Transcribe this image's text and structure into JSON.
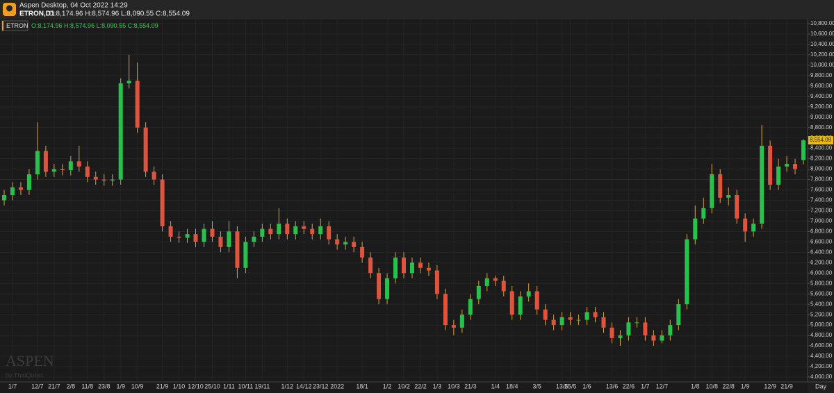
{
  "chart_data": {
    "type": "candlestick",
    "header": {
      "app": "Aspen Desktop, 04 Oct 2022 14:29",
      "symbol": "ETRON,D1",
      "ohlc": "O:8,174.96 H:8,574.96 L:8,090.55 C:8,554.09"
    },
    "legend_ohlc": "O:8,174.96 H:8,574.96 L:8,090.55 C:8,554.09",
    "last_price_label": "8,554.09",
    "x_axis_label": "Day",
    "watermark": {
      "title": "ASPEN",
      "subtitle": "by ThaiQuest"
    },
    "up_color": "#26c24b",
    "down_color": "#e0533d",
    "wick_color": "#d9a441",
    "grid": true,
    "categories": [
      null,
      "1/7",
      null,
      null,
      "12/7",
      null,
      "21/7",
      null,
      "2/8",
      null,
      "11/8",
      null,
      "23/8",
      null,
      "1/9",
      null,
      "10/9",
      null,
      null,
      "21/9",
      null,
      "1/10",
      null,
      "12/10",
      null,
      "25/10",
      null,
      "1/11",
      null,
      "10/11",
      null,
      "19/11",
      null,
      null,
      "1/12",
      null,
      "14/12",
      null,
      "23/12",
      null,
      "2022",
      null,
      null,
      "18/1",
      null,
      null,
      "1/2",
      null,
      "10/2",
      null,
      "22/2",
      null,
      "1/3",
      null,
      "10/3",
      null,
      "21/3",
      null,
      null,
      "1/4",
      null,
      "18/4",
      null,
      null,
      "3/5",
      null,
      null,
      "13/5",
      "25/5",
      null,
      "1/6",
      null,
      null,
      "13/6",
      null,
      "22/6",
      null,
      "1/7",
      null,
      "12/7",
      null,
      null,
      null,
      "1/8",
      null,
      "10/8",
      null,
      "22/8",
      null,
      "1/9",
      null,
      null,
      "12/9",
      null,
      "21/9",
      null,
      null
    ],
    "series": [
      {
        "name": "ETRON",
        "open": [
          7400,
          7500,
          7650,
          7600,
          7900,
          8350,
          7950,
          8000,
          7980,
          8150,
          8050,
          7850,
          7800,
          7780,
          7800,
          9650,
          9700,
          8800,
          7950,
          7800,
          6900,
          6700,
          6680,
          6750,
          6600,
          6850,
          6700,
          6500,
          6800,
          6100,
          6600,
          6700,
          6850,
          6750,
          6950,
          6750,
          6900,
          6850,
          6750,
          6900,
          6650,
          6550,
          6600,
          6500,
          6300,
          6000,
          5500,
          5900,
          6300,
          6000,
          6200,
          6100,
          6050,
          5600,
          5000,
          4950,
          5200,
          5500,
          5750,
          5900,
          5850,
          5650,
          5200,
          5550,
          5650,
          5300,
          5100,
          5000,
          5150,
          5100,
          5100,
          5250,
          5150,
          4950,
          4750,
          4800,
          5050,
          5050,
          4800,
          4700,
          4800,
          5000,
          5400,
          6650,
          7050,
          7250,
          7900,
          7450,
          7500,
          7050,
          6800,
          6950,
          8450,
          7700,
          8050,
          8100,
          8174.96
        ],
        "high": [
          7600,
          7750,
          7750,
          8000,
          8900,
          8450,
          8100,
          8100,
          8250,
          8450,
          8150,
          7950,
          7900,
          7900,
          9750,
          10200,
          10050,
          8900,
          8050,
          7900,
          7000,
          6800,
          6850,
          6850,
          6950,
          7000,
          6800,
          7000,
          6900,
          6700,
          6800,
          6950,
          6950,
          7250,
          7050,
          7000,
          7000,
          6950,
          7050,
          7000,
          6750,
          6700,
          6700,
          6600,
          6400,
          6100,
          6000,
          6400,
          6400,
          6300,
          6300,
          6200,
          6150,
          5700,
          5100,
          5300,
          5600,
          5850,
          6000,
          5950,
          5950,
          5750,
          5650,
          5800,
          5750,
          5400,
          5200,
          5250,
          5250,
          5200,
          5350,
          5350,
          5250,
          5050,
          4900,
          5150,
          5150,
          5150,
          4900,
          4900,
          5100,
          5500,
          6750,
          7300,
          7450,
          8100,
          8000,
          7650,
          7600,
          7150,
          7050,
          8850,
          8550,
          8200,
          8250,
          8200,
          8574.96
        ],
        "low": [
          7300,
          7400,
          7500,
          7500,
          7800,
          7850,
          7850,
          7880,
          7880,
          7950,
          7750,
          7700,
          7680,
          7680,
          7700,
          9550,
          8700,
          7850,
          7700,
          6800,
          6600,
          6580,
          6580,
          6500,
          6500,
          6600,
          6400,
          6400,
          5900,
          6000,
          6500,
          6600,
          6650,
          6650,
          6650,
          6650,
          6750,
          6650,
          6650,
          6550,
          6450,
          6450,
          6400,
          6200,
          5900,
          5400,
          5400,
          5800,
          5900,
          5900,
          6000,
          5950,
          5500,
          4900,
          4800,
          4850,
          5100,
          5400,
          5650,
          5750,
          5550,
          5100,
          5100,
          5450,
          5200,
          5000,
          4900,
          4900,
          5000,
          5000,
          5000,
          5050,
          4850,
          4650,
          4600,
          4700,
          4950,
          4700,
          4600,
          4650,
          4700,
          4900,
          5300,
          6550,
          6950,
          7150,
          7350,
          7300,
          6950,
          6600,
          6700,
          6850,
          7600,
          7600,
          7950,
          7900,
          8090.55
        ],
        "close": [
          7500,
          7650,
          7600,
          7900,
          8350,
          7950,
          8000,
          7980,
          8150,
          8050,
          7850,
          7800,
          7780,
          7800,
          9650,
          9700,
          8800,
          7950,
          7800,
          6900,
          6700,
          6680,
          6750,
          6600,
          6850,
          6700,
          6500,
          6800,
          6100,
          6600,
          6700,
          6850,
          6750,
          6950,
          6750,
          6900,
          6850,
          6750,
          6900,
          6650,
          6550,
          6600,
          6500,
          6300,
          6000,
          5500,
          5900,
          6300,
          6000,
          6200,
          6100,
          6050,
          5600,
          5000,
          4950,
          5200,
          5500,
          5750,
          5900,
          5850,
          5650,
          5200,
          5550,
          5650,
          5300,
          5100,
          5000,
          5150,
          5100,
          5100,
          5250,
          5150,
          4950,
          4750,
          4800,
          5050,
          5050,
          4800,
          4700,
          4800,
          5000,
          5400,
          6650,
          7050,
          7250,
          7900,
          7450,
          7500,
          7050,
          6800,
          6950,
          8450,
          7700,
          8050,
          8100,
          8000,
          8554.09
        ]
      }
    ],
    "ylim": [
      3906,
      10880
    ],
    "yticks": [
      {
        "value": 4000,
        "label": "4,000.00"
      },
      {
        "value": 4200,
        "label": "4,200.00"
      },
      {
        "value": 4400,
        "label": "4,400.00"
      },
      {
        "value": 4600,
        "label": "4,600.00"
      },
      {
        "value": 4800,
        "label": "4,800.00"
      },
      {
        "value": 5000,
        "label": "5,000.00"
      },
      {
        "value": 5200,
        "label": "5,200.00"
      },
      {
        "value": 5400,
        "label": "5,400.00"
      },
      {
        "value": 5600,
        "label": "5,600.00"
      },
      {
        "value": 5800,
        "label": "5,800.00"
      },
      {
        "value": 6000,
        "label": "6,000.00"
      },
      {
        "value": 6200,
        "label": "6,200.00"
      },
      {
        "value": 6400,
        "label": "6,400.00"
      },
      {
        "value": 6600,
        "label": "6,600.00"
      },
      {
        "value": 6800,
        "label": "6,800.00"
      },
      {
        "value": 7000,
        "label": "7,000.00"
      },
      {
        "value": 7200,
        "label": "7,200.00"
      },
      {
        "value": 7400,
        "label": "7,400.00"
      },
      {
        "value": 7600,
        "label": "7,600.00"
      },
      {
        "value": 7800,
        "label": "7,800.00"
      },
      {
        "value": 8000,
        "label": "8,000.00"
      },
      {
        "value": 8200,
        "label": "8,200.00"
      },
      {
        "value": 8400,
        "label": "8,400.00"
      },
      {
        "value": 8600,
        "label": "8,600.00"
      },
      {
        "value": 8800,
        "label": "8,800.00"
      },
      {
        "value": 9000,
        "label": "9,000.00"
      },
      {
        "value": 9200,
        "label": "9,200.00"
      },
      {
        "value": 9400,
        "label": "9,400.00"
      },
      {
        "value": 9600,
        "label": "9,600.00"
      },
      {
        "value": 9800,
        "label": "9,800.00"
      },
      {
        "value": 10000,
        "label": "10,000.00"
      },
      {
        "value": 10200,
        "label": "10,200.00"
      },
      {
        "value": 10400,
        "label": "10,400.00"
      },
      {
        "value": 10600,
        "label": "10,600.00"
      },
      {
        "value": 10800,
        "label": "10,800.00"
      }
    ]
  }
}
